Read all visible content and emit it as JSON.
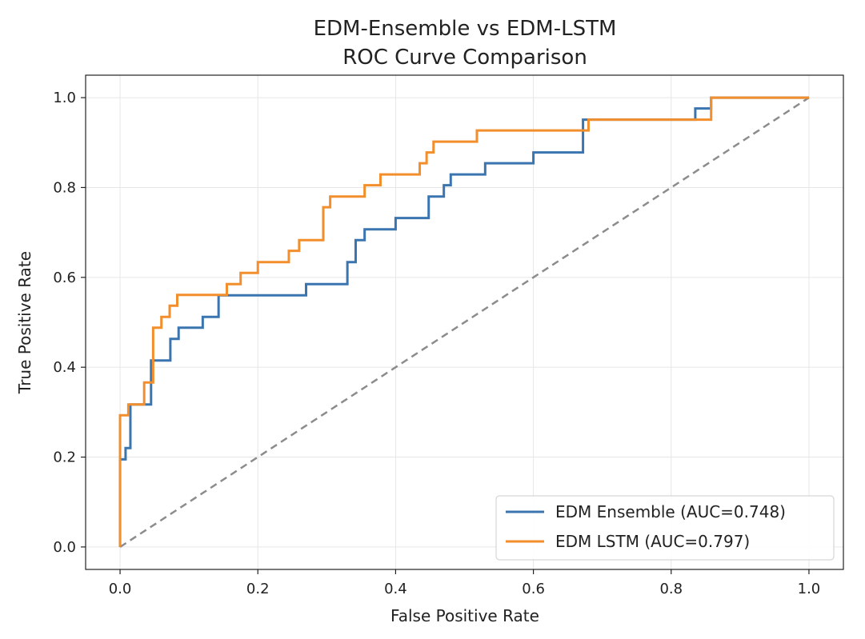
{
  "chart_data": {
    "type": "line",
    "title_lines": [
      "EDM-Ensemble vs EDM-LSTM",
      "ROC Curve Comparison"
    ],
    "xlabel": "False Positive Rate",
    "ylabel": "True Positive Rate",
    "xlim": [
      -0.05,
      1.05
    ],
    "ylim": [
      -0.05,
      1.05
    ],
    "xticks": [
      0.0,
      0.2,
      0.4,
      0.6,
      0.8,
      1.0
    ],
    "yticks": [
      0.0,
      0.2,
      0.4,
      0.6,
      0.8,
      1.0
    ],
    "xtick_labels": [
      "0.0",
      "0.2",
      "0.4",
      "0.6",
      "0.8",
      "1.0"
    ],
    "ytick_labels": [
      "0.0",
      "0.2",
      "0.4",
      "0.6",
      "0.8",
      "1.0"
    ],
    "grid": true,
    "legend_position": "lower right",
    "series": [
      {
        "name": "EDM Ensemble (AUC=0.748)",
        "color": "#3a75b0",
        "x": [
          0.0,
          0.0,
          0.008,
          0.008,
          0.015,
          0.015,
          0.024,
          0.024,
          0.045,
          0.045,
          0.055,
          0.055,
          0.073,
          0.073,
          0.085,
          0.085,
          0.12,
          0.12,
          0.143,
          0.143,
          0.27,
          0.27,
          0.33,
          0.33,
          0.342,
          0.342,
          0.355,
          0.355,
          0.4,
          0.4,
          0.448,
          0.448,
          0.47,
          0.47,
          0.48,
          0.48,
          0.53,
          0.53,
          0.6,
          0.6,
          0.672,
          0.672,
          0.835,
          0.835,
          0.858,
          0.858,
          1.0
        ],
        "y": [
          0.0,
          0.195,
          0.195,
          0.22,
          0.22,
          0.317,
          0.317,
          0.317,
          0.317,
          0.415,
          0.415,
          0.415,
          0.415,
          0.463,
          0.463,
          0.488,
          0.488,
          0.512,
          0.512,
          0.56,
          0.56,
          0.585,
          0.585,
          0.634,
          0.634,
          0.683,
          0.683,
          0.707,
          0.707,
          0.732,
          0.732,
          0.78,
          0.78,
          0.805,
          0.805,
          0.829,
          0.829,
          0.854,
          0.854,
          0.878,
          0.878,
          0.951,
          0.951,
          0.976,
          0.976,
          1.0,
          1.0
        ]
      },
      {
        "name": "EDM LSTM (AUC=0.797)",
        "color": "#f28e2b",
        "x": [
          0.0,
          0.0,
          0.012,
          0.012,
          0.035,
          0.035,
          0.048,
          0.048,
          0.06,
          0.06,
          0.072,
          0.072,
          0.083,
          0.083,
          0.155,
          0.155,
          0.175,
          0.175,
          0.2,
          0.2,
          0.245,
          0.245,
          0.26,
          0.26,
          0.295,
          0.295,
          0.305,
          0.305,
          0.355,
          0.355,
          0.378,
          0.378,
          0.435,
          0.435,
          0.445,
          0.445,
          0.455,
          0.455,
          0.518,
          0.518,
          0.68,
          0.68,
          0.858,
          0.858,
          1.0
        ],
        "y": [
          0.0,
          0.293,
          0.293,
          0.317,
          0.317,
          0.366,
          0.366,
          0.488,
          0.488,
          0.512,
          0.512,
          0.537,
          0.537,
          0.561,
          0.561,
          0.585,
          0.585,
          0.61,
          0.61,
          0.634,
          0.634,
          0.659,
          0.659,
          0.683,
          0.683,
          0.756,
          0.756,
          0.78,
          0.78,
          0.805,
          0.805,
          0.829,
          0.829,
          0.854,
          0.854,
          0.878,
          0.878,
          0.902,
          0.902,
          0.927,
          0.927,
          0.951,
          0.951,
          1.0,
          1.0
        ]
      }
    ],
    "reference_line": {
      "x": [
        0.0,
        1.0
      ],
      "y": [
        0.0,
        1.0
      ],
      "color": "#8c8c8c",
      "style": "dashed"
    }
  }
}
